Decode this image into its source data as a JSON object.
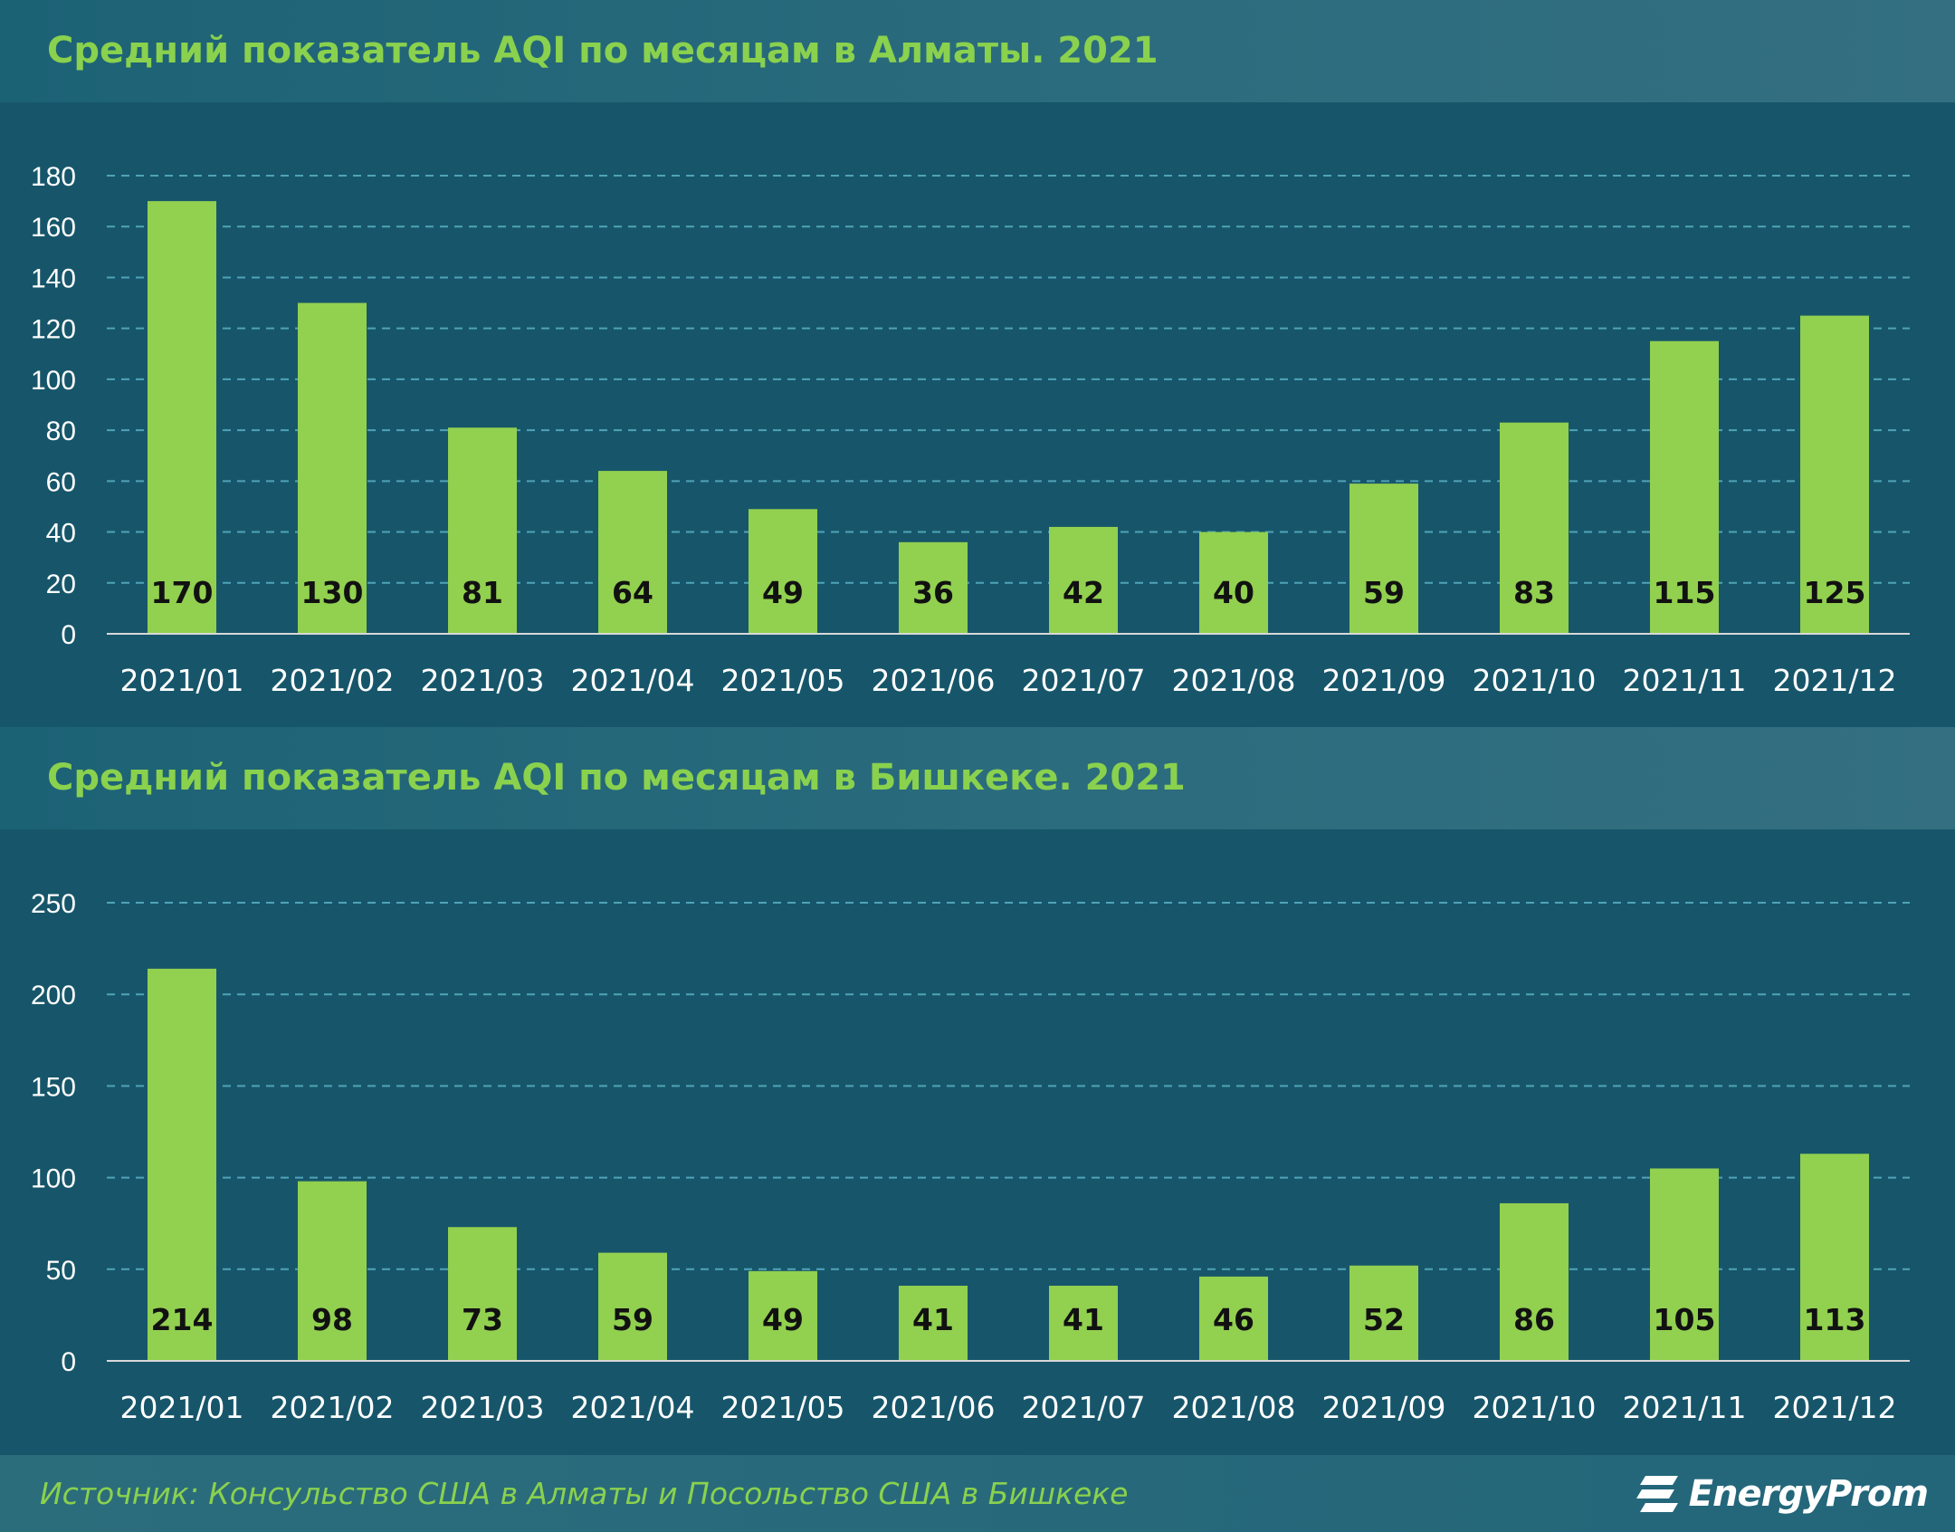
{
  "chart_data": [
    {
      "type": "bar",
      "title": "Средний показатель AQI по месяцам в Алматы. 2021",
      "categories": [
        "2021/01",
        "2021/02",
        "2021/03",
        "2021/04",
        "2021/05",
        "2021/06",
        "2021/07",
        "2021/08",
        "2021/09",
        "2021/10",
        "2021/11",
        "2021/12"
      ],
      "values": [
        170,
        130,
        81,
        64,
        49,
        36,
        42,
        40,
        59,
        83,
        115,
        125
      ],
      "ylim": [
        0,
        180
      ],
      "yticks": [
        "0",
        "20",
        "40",
        "60",
        "80",
        "100",
        "120",
        "140",
        "160",
        "180"
      ],
      "grid": true,
      "xlabel": "",
      "ylabel": "",
      "bar_color": "#92d050",
      "label_color": "#111111"
    },
    {
      "type": "bar",
      "title": "Средний показатель AQI по месяцам в Бишкеке. 2021",
      "categories": [
        "2021/01",
        "2021/02",
        "2021/03",
        "2021/04",
        "2021/05",
        "2021/06",
        "2021/07",
        "2021/08",
        "2021/09",
        "2021/10",
        "2021/11",
        "2021/12"
      ],
      "values": [
        214,
        98,
        73,
        59,
        49,
        41,
        41,
        46,
        52,
        86,
        105,
        113
      ],
      "ylim": [
        0,
        250
      ],
      "yticks": [
        "0",
        "50",
        "100",
        "150",
        "200",
        "250"
      ],
      "grid": true,
      "xlabel": "",
      "ylabel": "",
      "bar_color": "#92d050",
      "label_color": "#111111"
    }
  ],
  "footer": {
    "source": "Источник: Консульство США в Алматы и Посольство США в Бишкеке",
    "logo_text": "EnergyProm"
  },
  "colors": {
    "background": "#17566a",
    "title": "#8ad14e",
    "axis_text": "#ffffff",
    "grid": "#4fa3b8"
  }
}
